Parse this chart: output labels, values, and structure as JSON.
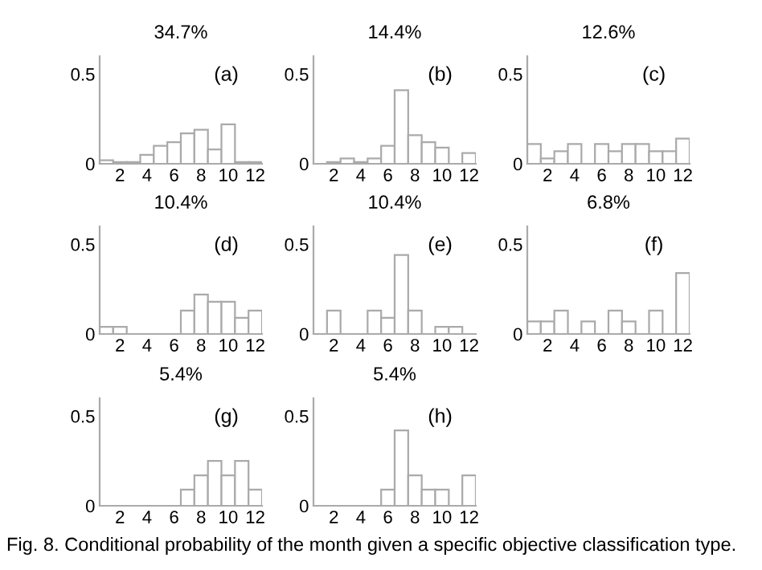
{
  "chart_data": [
    {
      "type": "bar",
      "title": "34.7%",
      "annotations": [
        "(a)"
      ],
      "x": [
        1,
        2,
        3,
        4,
        5,
        6,
        7,
        8,
        9,
        10,
        11,
        12
      ],
      "values": [
        0.02,
        0.01,
        0.01,
        0.05,
        0.1,
        0.12,
        0.17,
        0.19,
        0.08,
        0.22,
        0.01,
        0.01
      ],
      "color": "#ffffff",
      "xlim": [
        0.5,
        12.5
      ],
      "xticks": [
        2,
        4,
        6,
        8,
        10,
        12
      ],
      "ylim": [
        0,
        0.6
      ],
      "yticks": [
        0,
        0.5
      ],
      "grid": false,
      "legend": false
    },
    {
      "type": "bar",
      "title": "14.4%",
      "annotations": [
        "(b)"
      ],
      "x": [
        1,
        2,
        3,
        4,
        5,
        6,
        7,
        8,
        9,
        10,
        11,
        12
      ],
      "values": [
        0,
        0.01,
        0.03,
        0.01,
        0.03,
        0.1,
        0.41,
        0.16,
        0.12,
        0.09,
        0,
        0.06
      ],
      "color": "#ffffff",
      "xlim": [
        0.5,
        12.5
      ],
      "xticks": [
        2,
        4,
        6,
        8,
        10,
        12
      ],
      "ylim": [
        0,
        0.6
      ],
      "yticks": [
        0,
        0.5
      ],
      "grid": false,
      "legend": false
    },
    {
      "type": "bar",
      "title": "12.6%",
      "annotations": [
        "(c)"
      ],
      "x": [
        1,
        2,
        3,
        4,
        5,
        6,
        7,
        8,
        9,
        10,
        11,
        12
      ],
      "values": [
        0.11,
        0.03,
        0.07,
        0.11,
        0,
        0.11,
        0.07,
        0.11,
        0.11,
        0.07,
        0.07,
        0.14
      ],
      "color": "#ffffff",
      "xlim": [
        0.5,
        12.5
      ],
      "xticks": [
        2,
        4,
        6,
        8,
        10,
        12
      ],
      "ylim": [
        0,
        0.6
      ],
      "yticks": [
        0,
        0.5
      ],
      "grid": false,
      "legend": false
    },
    {
      "type": "bar",
      "title": "10.4%",
      "annotations": [
        "(d)"
      ],
      "x": [
        1,
        2,
        3,
        4,
        5,
        6,
        7,
        8,
        9,
        10,
        11,
        12
      ],
      "values": [
        0.04,
        0.04,
        0,
        0,
        0,
        0,
        0.13,
        0.22,
        0.18,
        0.18,
        0.09,
        0.13
      ],
      "color": "#ffffff",
      "xlim": [
        0.5,
        12.5
      ],
      "xticks": [
        2,
        4,
        6,
        8,
        10,
        12
      ],
      "ylim": [
        0,
        0.6
      ],
      "yticks": [
        0,
        0.5
      ],
      "grid": false,
      "legend": false
    },
    {
      "type": "bar",
      "title": "10.4%",
      "annotations": [
        "(e)"
      ],
      "x": [
        1,
        2,
        3,
        4,
        5,
        6,
        7,
        8,
        9,
        10,
        11,
        12
      ],
      "values": [
        0,
        0.13,
        0,
        0,
        0.13,
        0.09,
        0.44,
        0.13,
        0,
        0.04,
        0.04,
        0
      ],
      "color": "#ffffff",
      "xlim": [
        0.5,
        12.5
      ],
      "xticks": [
        2,
        4,
        6,
        8,
        10,
        12
      ],
      "ylim": [
        0,
        0.6
      ],
      "yticks": [
        0,
        0.5
      ],
      "grid": false,
      "legend": false
    },
    {
      "type": "bar",
      "title": "6.8%",
      "annotations": [
        "(f)"
      ],
      "x": [
        1,
        2,
        3,
        4,
        5,
        6,
        7,
        8,
        9,
        10,
        11,
        12
      ],
      "values": [
        0.07,
        0.07,
        0.13,
        0,
        0.07,
        0,
        0.13,
        0.07,
        0,
        0.13,
        0,
        0.34
      ],
      "color": "#ffffff",
      "xlim": [
        0.5,
        12.5
      ],
      "xticks": [
        2,
        4,
        6,
        8,
        10,
        12
      ],
      "ylim": [
        0,
        0.6
      ],
      "yticks": [
        0,
        0.5
      ],
      "grid": false,
      "legend": false
    },
    {
      "type": "bar",
      "title": "5.4%",
      "annotations": [
        "(g)"
      ],
      "x": [
        1,
        2,
        3,
        4,
        5,
        6,
        7,
        8,
        9,
        10,
        11,
        12
      ],
      "values": [
        0,
        0,
        0,
        0,
        0,
        0,
        0.09,
        0.17,
        0.25,
        0.17,
        0.25,
        0.09
      ],
      "color": "#ffffff",
      "xlim": [
        0.5,
        12.5
      ],
      "xticks": [
        2,
        4,
        6,
        8,
        10,
        12
      ],
      "ylim": [
        0,
        0.6
      ],
      "yticks": [
        0,
        0.5
      ],
      "grid": false,
      "legend": false
    },
    {
      "type": "bar",
      "title": "5.4%",
      "annotations": [
        "(h)",
        "Fig. 8. Conditional probability of the month given a specific objective classification type."
      ],
      "x": [
        1,
        2,
        3,
        4,
        5,
        6,
        7,
        8,
        9,
        10,
        11,
        12
      ],
      "values": [
        0,
        0,
        0,
        0,
        0,
        0.09,
        0.42,
        0.17,
        0.09,
        0.09,
        0,
        0.17
      ],
      "color": "#ffffff",
      "xlim": [
        0.5,
        12.5
      ],
      "xticks": [
        2,
        4,
        6,
        8,
        10,
        12
      ],
      "ylim": [
        0,
        0.6
      ],
      "yticks": [
        0,
        0.5
      ],
      "grid": false,
      "legend": false
    }
  ]
}
